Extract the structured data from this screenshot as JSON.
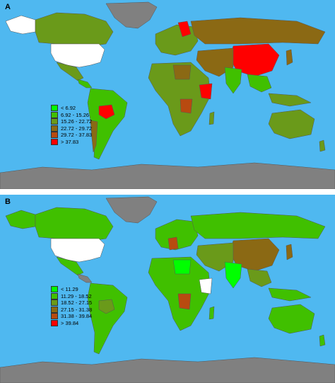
{
  "panels": [
    {
      "letter": "A",
      "legend": [
        {
          "label": "< 6.92",
          "color": "#00ff00"
        },
        {
          "label": "6.92 - 15.26",
          "color": "#40c000"
        },
        {
          "label": "15.26 - 22.72",
          "color": "#6a9a1a"
        },
        {
          "label": "22.72 - 29.72",
          "color": "#8b6914"
        },
        {
          "label": "29.72 - 37.83",
          "color": "#b84a10"
        },
        {
          "label": "> 37.83",
          "color": "#ff0000"
        }
      ]
    },
    {
      "letter": "B",
      "legend": [
        {
          "label": "< 11.29",
          "color": "#00ff00"
        },
        {
          "label": "11.29 - 18.52",
          "color": "#40c000"
        },
        {
          "label": "18.52 - 27.15",
          "color": "#6a9a1a"
        },
        {
          "label": "27.15 - 31.38",
          "color": "#8b6914"
        },
        {
          "label": "31.38 - 39.84",
          "color": "#b84a10"
        },
        {
          "label": "> 39.84",
          "color": "#ff0000"
        }
      ]
    }
  ],
  "colors": {
    "ocean": "#4fb8f0",
    "no_data": "#808080",
    "excluded": "#ffffff"
  }
}
